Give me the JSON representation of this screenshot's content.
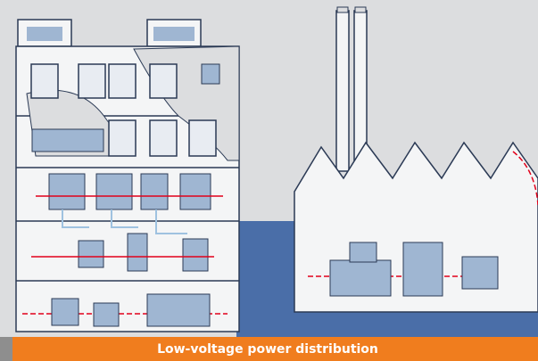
{
  "caption": "Low-voltage power distribution"
}
